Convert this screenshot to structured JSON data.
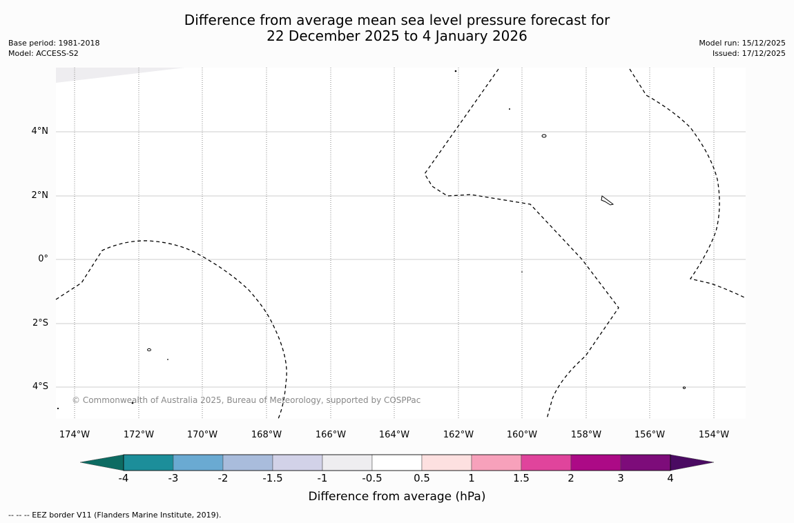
{
  "title": {
    "line1": "Difference from average mean sea level pressure forecast for",
    "line2": "22 December 2025 to 4 January 2026"
  },
  "meta_left": {
    "base_period": "Base period: 1981-2018",
    "model": "Model: ACCESS-S2"
  },
  "meta_right": {
    "model_run": "Model run: 15/12/2025",
    "issued": "Issued: 17/12/2025"
  },
  "map": {
    "lat_labels": [
      "4°N",
      "2°N",
      "0°",
      "2°S",
      "4°S"
    ],
    "lon_labels": [
      "174°W",
      "172°W",
      "170°W",
      "168°W",
      "166°W",
      "164°W",
      "162°W",
      "160°W",
      "158°W",
      "156°W",
      "154°W"
    ],
    "lon_range": [
      -174.6,
      -152.9
    ],
    "lat_range": [
      -5.0,
      5.8
    ],
    "copyright": "© Commonwealth of Australia 2025, Bureau of Meteorology, supported by COSPPac",
    "shaded_region_class": "-0.5 to 0.5"
  },
  "colorbar": {
    "title": "Difference from average (hPa)",
    "tick_labels": [
      "-4",
      "-3",
      "-2",
      "-1.5",
      "-1",
      "-0.5",
      "0.5",
      "1",
      "1.5",
      "2",
      "3",
      "4"
    ],
    "colors": [
      "#0d6b62",
      "#1c8e9a",
      "#6aaad2",
      "#a9bcdc",
      "#d2d2e8",
      "#eeedf0",
      "#ffffff",
      "#fde0e0",
      "#f7a1bb",
      "#e0449c",
      "#ac0a86",
      "#7d0c7a",
      "#4a0b62"
    ]
  },
  "footnote": "--  --  -- EEZ border V11 (Flanders Marine Institute, 2019)."
}
